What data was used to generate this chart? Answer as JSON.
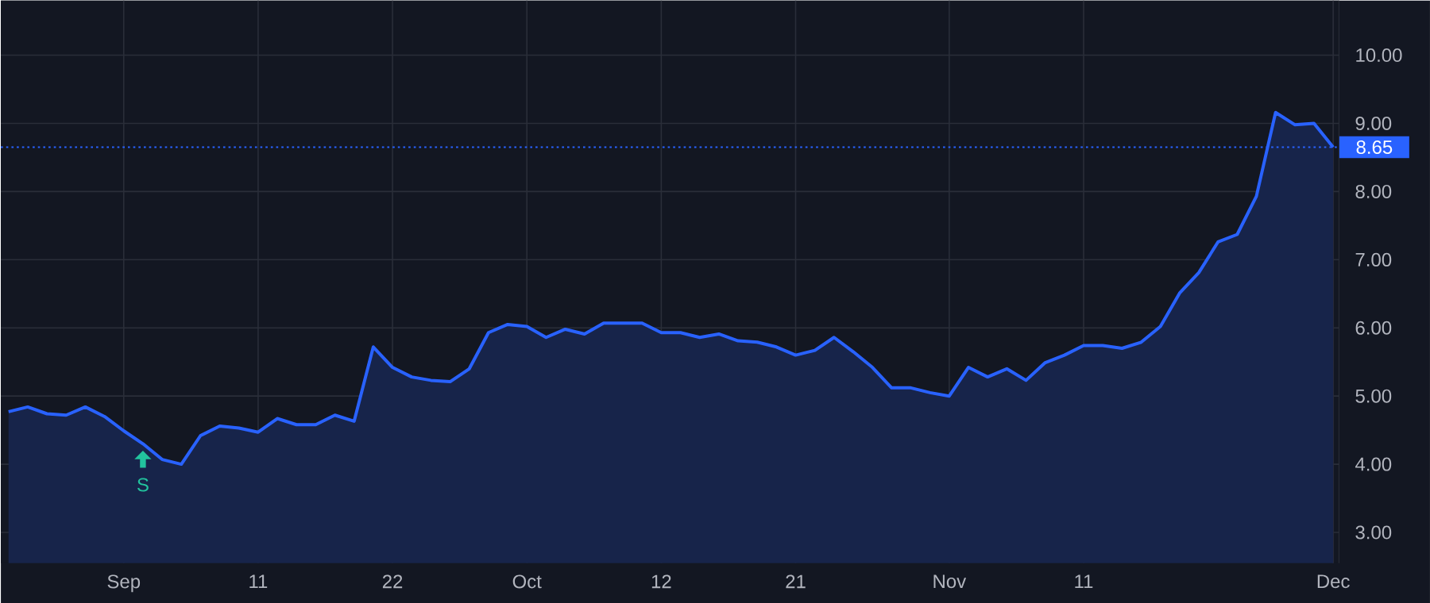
{
  "chart_data": {
    "type": "area",
    "categories": [
      null,
      null,
      null,
      null,
      null,
      null,
      "Sep",
      null,
      null,
      null,
      null,
      null,
      null,
      "11",
      null,
      null,
      null,
      null,
      null,
      null,
      "22",
      null,
      null,
      null,
      null,
      null,
      null,
      "Oct",
      null,
      null,
      null,
      null,
      null,
      null,
      "12",
      null,
      null,
      null,
      null,
      null,
      null,
      "21",
      null,
      null,
      null,
      null,
      null,
      null,
      null,
      "Nov",
      null,
      null,
      null,
      null,
      null,
      null,
      "11",
      null,
      null,
      null,
      null,
      null,
      null,
      null,
      null,
      null,
      null,
      null,
      null,
      "Dec"
    ],
    "series": [
      {
        "color": "#2962ff",
        "values": [
          4.77,
          4.84,
          4.74,
          4.72,
          4.84,
          4.7,
          4.49,
          4.3,
          4.07,
          4.0,
          4.42,
          4.56,
          4.53,
          4.47,
          4.67,
          4.58,
          4.58,
          4.72,
          4.63,
          5.72,
          5.42,
          5.28,
          5.23,
          5.21,
          5.4,
          5.93,
          6.05,
          6.02,
          5.86,
          5.98,
          5.91,
          6.07,
          6.07,
          6.07,
          5.93,
          5.93,
          5.86,
          5.91,
          5.81,
          5.79,
          5.72,
          5.6,
          5.67,
          5.86,
          5.65,
          5.42,
          5.12,
          5.12,
          5.05,
          5.0,
          5.42,
          5.28,
          5.4,
          5.23,
          5.49,
          5.6,
          5.74,
          5.74,
          5.7,
          5.79,
          6.02,
          6.51,
          6.81,
          7.26,
          7.37,
          7.93,
          9.16,
          8.98,
          9.0,
          8.65
        ]
      }
    ],
    "ylim": [
      2.55,
      10.8
    ],
    "yticks": [
      {
        "value": 3,
        "label": "3.00"
      },
      {
        "value": 4,
        "label": "4.00"
      },
      {
        "value": 5,
        "label": "5.00"
      },
      {
        "value": 6,
        "label": "6.00"
      },
      {
        "value": 7,
        "label": "7.00"
      },
      {
        "value": 8,
        "label": "8.00"
      },
      {
        "value": 9,
        "label": "9.00"
      },
      {
        "value": 10,
        "label": "10.00"
      }
    ],
    "grid": true,
    "ref_lines": [
      {
        "axis": "y",
        "value": 8.65,
        "label": "8.65",
        "color": "#2962ff",
        "line_style": "dotted"
      }
    ],
    "annotations": [
      {
        "text": "S",
        "y": 4.3
      }
    ]
  }
}
